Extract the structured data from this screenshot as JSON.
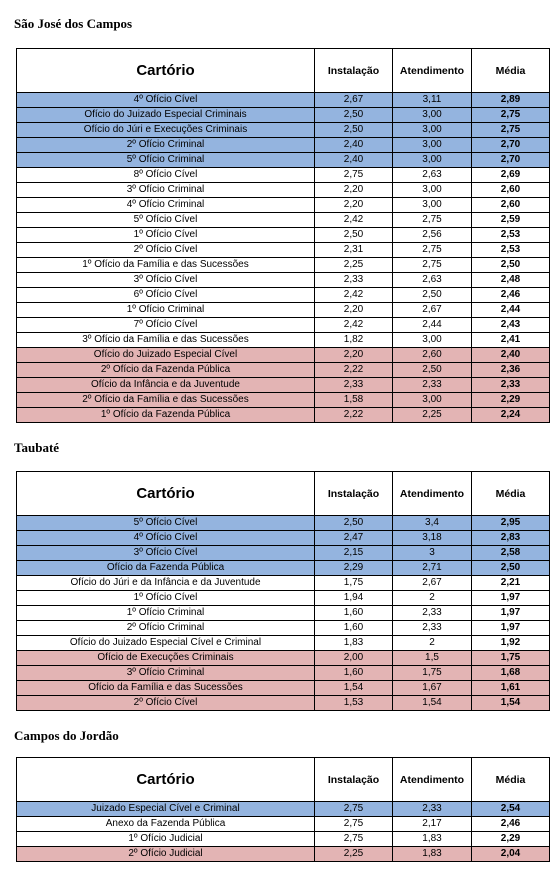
{
  "columns": {
    "name": "Cartório",
    "install": "Instalação",
    "service": "Atendimento",
    "avg": "Média"
  },
  "colors": {
    "top": "#94b4df",
    "bottom": "#e3b4b4",
    "middle": "#ffffff"
  },
  "sections": [
    {
      "title": "São José dos Campos",
      "rows": [
        [
          "4º Ofício Cível",
          "2,67",
          "3,11",
          "2,89",
          "blue"
        ],
        [
          "Ofício do Juizado Especial Criminais",
          "2,50",
          "3,00",
          "2,75",
          "blue"
        ],
        [
          "Ofício do Júri e Execuções Criminais",
          "2,50",
          "3,00",
          "2,75",
          "blue"
        ],
        [
          "2º Ofício Criminal",
          "2,40",
          "3,00",
          "2,70",
          "blue"
        ],
        [
          "5º Ofício Criminal",
          "2,40",
          "3,00",
          "2,70",
          "blue"
        ],
        [
          "8º Ofício Cível",
          "2,75",
          "2,63",
          "2,69",
          "white"
        ],
        [
          "3º Ofício Criminal",
          "2,20",
          "3,00",
          "2,60",
          "white"
        ],
        [
          "4º Ofício Criminal",
          "2,20",
          "3,00",
          "2,60",
          "white"
        ],
        [
          "5º Ofício Cível",
          "2,42",
          "2,75",
          "2,59",
          "white"
        ],
        [
          "1º Ofício Cível",
          "2,50",
          "2,56",
          "2,53",
          "white"
        ],
        [
          "2º Ofício Cível",
          "2,31",
          "2,75",
          "2,53",
          "white"
        ],
        [
          "1º Ofício da Família e das Sucessões",
          "2,25",
          "2,75",
          "2,50",
          "white"
        ],
        [
          "3º Ofício Cível",
          "2,33",
          "2,63",
          "2,48",
          "white"
        ],
        [
          "6º Ofício Cível",
          "2,42",
          "2,50",
          "2,46",
          "white"
        ],
        [
          "1º Ofício Criminal",
          "2,20",
          "2,67",
          "2,44",
          "white"
        ],
        [
          "7º Ofício Cível",
          "2,42",
          "2,44",
          "2,43",
          "white"
        ],
        [
          "3º Ofício da Família e das Sucessões",
          "1,82",
          "3,00",
          "2,41",
          "white"
        ],
        [
          "Ofício do Juizado Especial Cível",
          "2,20",
          "2,60",
          "2,40",
          "pink"
        ],
        [
          "2º Ofício da Fazenda Pública",
          "2,22",
          "2,50",
          "2,36",
          "pink"
        ],
        [
          "Ofício da Infância e da Juventude",
          "2,33",
          "2,33",
          "2,33",
          "pink"
        ],
        [
          "2º Ofício da Família e das Sucessões",
          "1,58",
          "3,00",
          "2,29",
          "pink"
        ],
        [
          "1º Ofício da Fazenda Pública",
          "2,22",
          "2,25",
          "2,24",
          "pink"
        ]
      ]
    },
    {
      "title": "Taubaté",
      "rows": [
        [
          "5º Ofício Cível",
          "2,50",
          "3,4",
          "2,95",
          "blue"
        ],
        [
          "4º Ofício Cível",
          "2,47",
          "3,18",
          "2,83",
          "blue"
        ],
        [
          "3º Ofício Cível",
          "2,15",
          "3",
          "2,58",
          "blue"
        ],
        [
          "Ofício da Fazenda Pública",
          "2,29",
          "2,71",
          "2,50",
          "blue"
        ],
        [
          "Ofício do Júri e da Infância e da Juventude",
          "1,75",
          "2,67",
          "2,21",
          "white"
        ],
        [
          "1º Ofício Cível",
          "1,94",
          "2",
          "1,97",
          "white"
        ],
        [
          "1º Ofício Criminal",
          "1,60",
          "2,33",
          "1,97",
          "white"
        ],
        [
          "2º Ofício Criminal",
          "1,60",
          "2,33",
          "1,97",
          "white"
        ],
        [
          "Ofício do Juizado Especial Cível e Criminal",
          "1,83",
          "2",
          "1,92",
          "white"
        ],
        [
          "Ofício de Execuções Criminais",
          "2,00",
          "1,5",
          "1,75",
          "pink"
        ],
        [
          "3º Ofício Criminal",
          "1,60",
          "1,75",
          "1,68",
          "pink"
        ],
        [
          "Ofício da Família e das Sucessões",
          "1,54",
          "1,67",
          "1,61",
          "pink"
        ],
        [
          "2º Ofício Cível",
          "1,53",
          "1,54",
          "1,54",
          "pink"
        ]
      ]
    },
    {
      "title": "Campos do Jordão",
      "rows": [
        [
          "Juizado Especial Cível e Criminal",
          "2,75",
          "2,33",
          "2,54",
          "blue"
        ],
        [
          "Anexo da Fazenda Pública",
          "2,75",
          "2,17",
          "2,46",
          "white"
        ],
        [
          "1º Ofício Judicial",
          "2,75",
          "1,83",
          "2,29",
          "white"
        ],
        [
          "2º Ofício Judicial",
          "2,25",
          "1,83",
          "2,04",
          "pink"
        ]
      ]
    }
  ]
}
